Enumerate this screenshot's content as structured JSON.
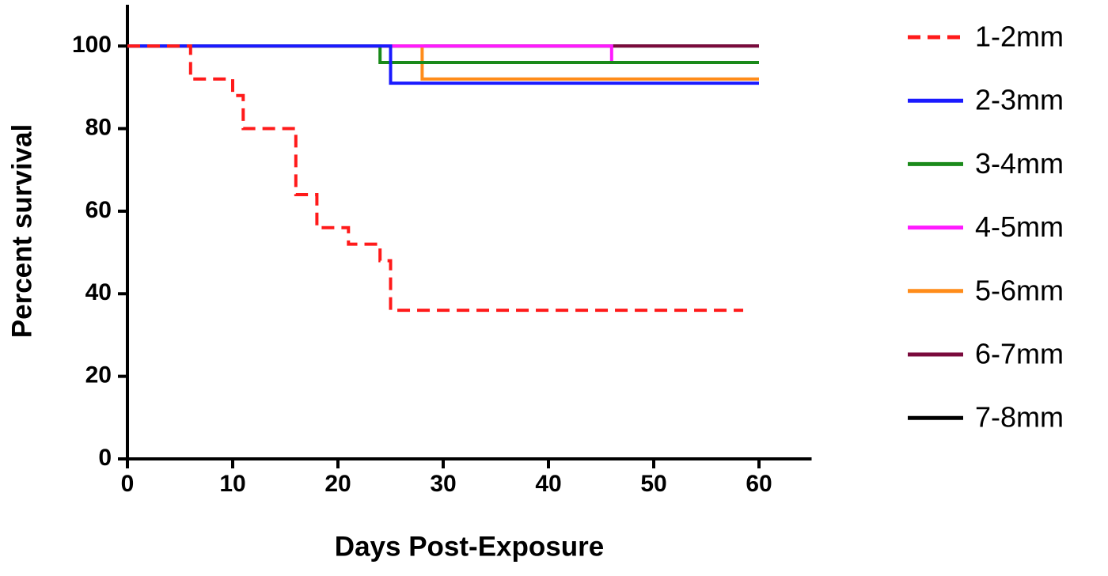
{
  "chart_data": {
    "type": "step",
    "xlabel": "Days Post-Exposure",
    "ylabel": "Percent survival",
    "xlim": [
      0,
      65
    ],
    "ylim": [
      0,
      110
    ],
    "xticks": [
      0,
      10,
      20,
      30,
      40,
      50,
      60
    ],
    "yticks": [
      0,
      20,
      40,
      60,
      80,
      100
    ],
    "legend": "right",
    "series": [
      {
        "name": "1-2mm",
        "color": "#ff1a1a",
        "line_style": "dashed",
        "x": [
          0,
          6,
          6,
          10,
          10,
          11,
          11,
          16,
          16,
          18,
          18,
          21,
          21,
          24,
          24,
          25,
          25,
          58.5
        ],
        "values": [
          100,
          100,
          92,
          92,
          88,
          88,
          80,
          80,
          64,
          64,
          56,
          56,
          52,
          52,
          48,
          48,
          36,
          36
        ]
      },
      {
        "name": "2-3mm",
        "color": "#1a1aff",
        "line_style": "solid",
        "x": [
          0,
          25,
          25,
          60
        ],
        "values": [
          100,
          100,
          91,
          91
        ]
      },
      {
        "name": "3-4mm",
        "color": "#1a8a1a",
        "line_style": "solid",
        "x": [
          0,
          24,
          24,
          60
        ],
        "values": [
          100,
          100,
          96,
          96
        ]
      },
      {
        "name": "4-5mm",
        "color": "#ff1aff",
        "line_style": "solid",
        "x": [
          0,
          46,
          46,
          60
        ],
        "values": [
          100,
          100,
          96,
          96
        ]
      },
      {
        "name": "5-6mm",
        "color": "#ff8c1a",
        "line_style": "solid",
        "x": [
          0,
          28,
          28,
          60
        ],
        "values": [
          100,
          100,
          92,
          92
        ]
      },
      {
        "name": "6-7mm",
        "color": "#7a0a3c",
        "line_style": "solid",
        "x": [
          0,
          60
        ],
        "values": [
          100,
          100
        ]
      },
      {
        "name": "7-8mm",
        "color": "#000000",
        "line_style": "solid",
        "x": [
          0,
          60
        ],
        "values": [
          100,
          100
        ]
      }
    ]
  }
}
